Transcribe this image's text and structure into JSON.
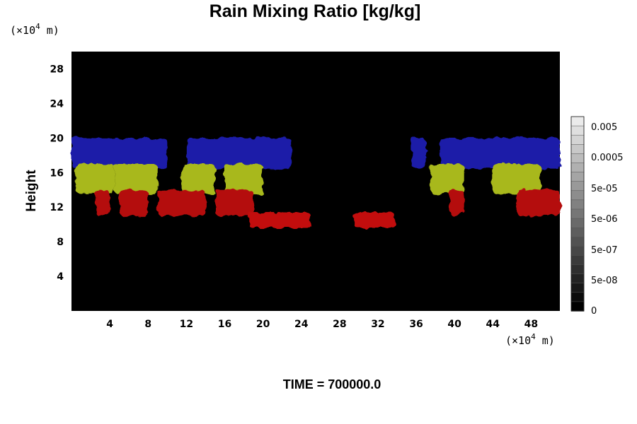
{
  "chart_data": {
    "type": "heatmap",
    "title": "Rain Mixing Ratio [kg/kg]",
    "ylabel": "Height",
    "x_unit": {
      "prefix": "(×10",
      "exp": "4",
      "suffix": " m)"
    },
    "y_unit": {
      "prefix": "(×10",
      "exp": "4",
      "suffix": " m)"
    },
    "xlim": [
      0,
      51
    ],
    "ylim": [
      0,
      30
    ],
    "x_ticks": [
      4,
      8,
      12,
      16,
      20,
      24,
      28,
      32,
      36,
      40,
      44,
      48
    ],
    "y_ticks": [
      4,
      8,
      12,
      16,
      20,
      24,
      28
    ],
    "background_color": "#000000",
    "colorbar": {
      "labels": [
        "0.005",
        "0.0005",
        "5e-05",
        "5e-06",
        "5e-07",
        "5e-08",
        "0"
      ],
      "scale": "log"
    },
    "layers": [
      {
        "name": "blue",
        "color": "#1a1aa8",
        "ymin": 16.5,
        "ymax": 20,
        "segments": [
          [
            0,
            10
          ],
          [
            12,
            23
          ],
          [
            35.5,
            37
          ],
          [
            38.5,
            51
          ]
        ]
      },
      {
        "name": "yellow-green",
        "color": "#a8b81e",
        "ymin": 13.5,
        "ymax": 17,
        "segments": [
          [
            0.5,
            4.5
          ],
          [
            4.5,
            9
          ],
          [
            11.5,
            15
          ],
          [
            16,
            20
          ],
          [
            37.5,
            41
          ],
          [
            44,
            49
          ]
        ]
      },
      {
        "name": "red",
        "color": "#b40e0e",
        "ymin": 11,
        "ymax": 14,
        "segments": [
          [
            2.5,
            4
          ],
          [
            5,
            8
          ],
          [
            9,
            14
          ],
          [
            15,
            19
          ],
          [
            39.5,
            41
          ],
          [
            46.5,
            51
          ]
        ]
      },
      {
        "name": "red-low",
        "color": "#c21010",
        "ymin": 9.6,
        "ymax": 11.4,
        "segments": [
          [
            18.5,
            25
          ],
          [
            29.5,
            33.8
          ]
        ]
      }
    ],
    "footer": "TIME = 700000.0"
  }
}
